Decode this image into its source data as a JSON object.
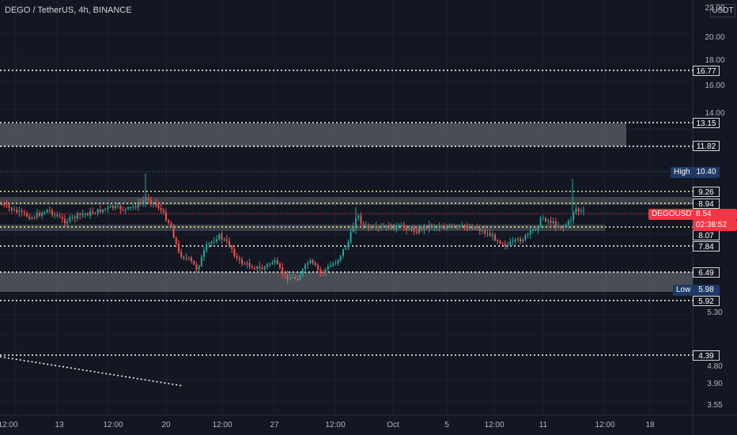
{
  "header": {
    "title": "DEGO / TetherUS, 4h, BINANCE",
    "currency_label": "USDT"
  },
  "colors": {
    "background": "#131722",
    "up": "#26a69a",
    "down": "#ef5350",
    "zone": "#5d6068",
    "level": "#ffffff",
    "last_price": "#f23645",
    "high_low_tag": "#1e3a66"
  },
  "price_axis": {
    "ticks": [
      "22.00",
      "20.00",
      "18.00",
      "16.00",
      "14.00",
      "5.30",
      "4.80",
      "3.90",
      "3.55"
    ]
  },
  "time_axis": {
    "ticks": [
      "12:00",
      "13",
      "12:00",
      "20",
      "12:00",
      "27",
      "12:00",
      "Oct",
      "5",
      "12:00",
      "11",
      "12:00",
      "18",
      "12:00"
    ]
  },
  "levels": [
    {
      "label": "16.77"
    },
    {
      "label": "13.15"
    },
    {
      "label": "11.82"
    },
    {
      "label": "9.26"
    },
    {
      "label": "8.94"
    },
    {
      "label": "8.07"
    },
    {
      "label": "7.84"
    },
    {
      "label": "6.49"
    },
    {
      "label": "5.92"
    },
    {
      "label": "4.39"
    }
  ],
  "high_marker": {
    "tag": "High",
    "value": "10.40"
  },
  "low_marker": {
    "tag": "Low",
    "value": "5.98"
  },
  "last_price": {
    "symbol": "DEGOUSDT",
    "value": "8.54",
    "countdown": "02:38:52"
  }
}
